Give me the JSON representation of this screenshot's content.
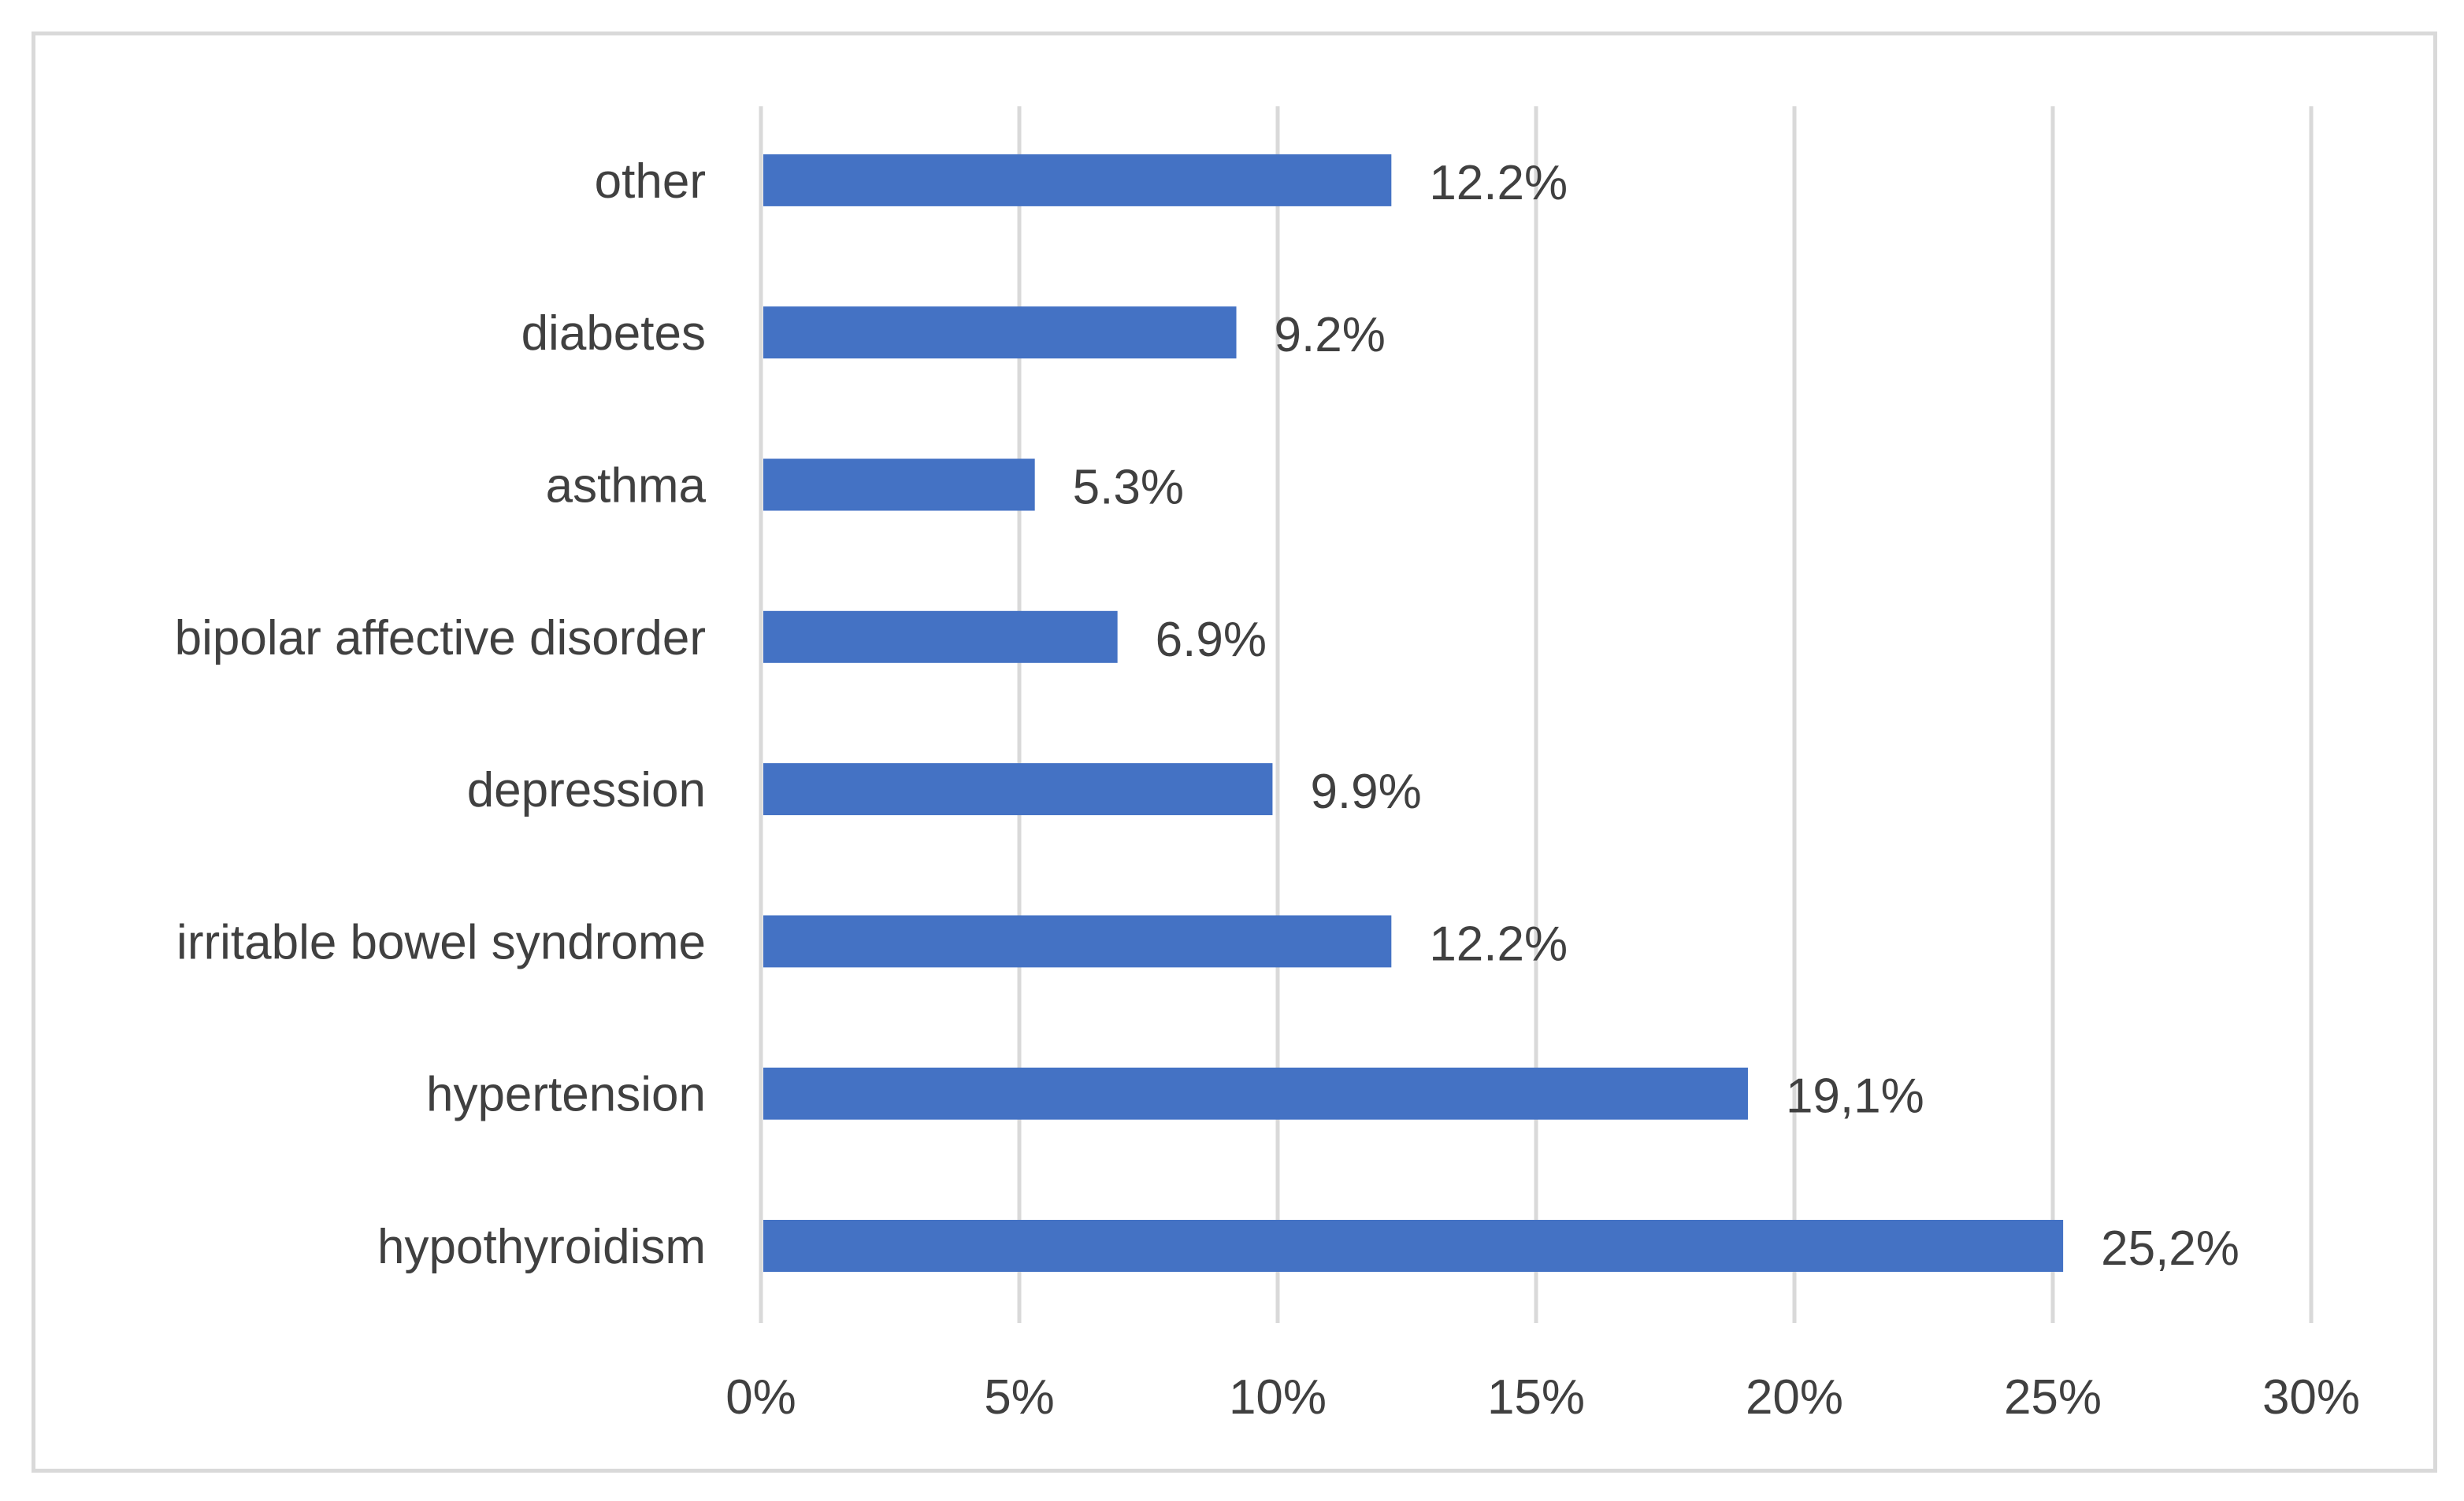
{
  "chart_data": {
    "type": "bar",
    "orientation": "horizontal",
    "title": "",
    "xlabel": "",
    "ylabel": "",
    "categories": [
      "hypothyroidism",
      "hypertension",
      "irritable bowel syndrome",
      "depression",
      "bipolar affective disorder",
      "asthma",
      "diabetes",
      "other"
    ],
    "values": [
      25.2,
      19.1,
      12.2,
      9.9,
      6.9,
      5.3,
      9.2,
      12.2
    ],
    "data_labels": [
      "25,2%",
      "19,1%",
      "12.2%",
      "9.9%",
      "6.9%",
      "5.3%",
      "9.2%",
      "12.2%"
    ],
    "xlim": [
      0,
      30
    ],
    "x_ticks": [
      0,
      5,
      10,
      15,
      20,
      25,
      30
    ],
    "x_tick_labels": [
      "0%",
      "5%",
      "10%",
      "15%",
      "20%",
      "25%",
      "30%"
    ],
    "grid": true,
    "legend": "none",
    "bar_color": "#4472c4",
    "gridline_color": "#d9d9d9",
    "text_color": "#404040"
  }
}
